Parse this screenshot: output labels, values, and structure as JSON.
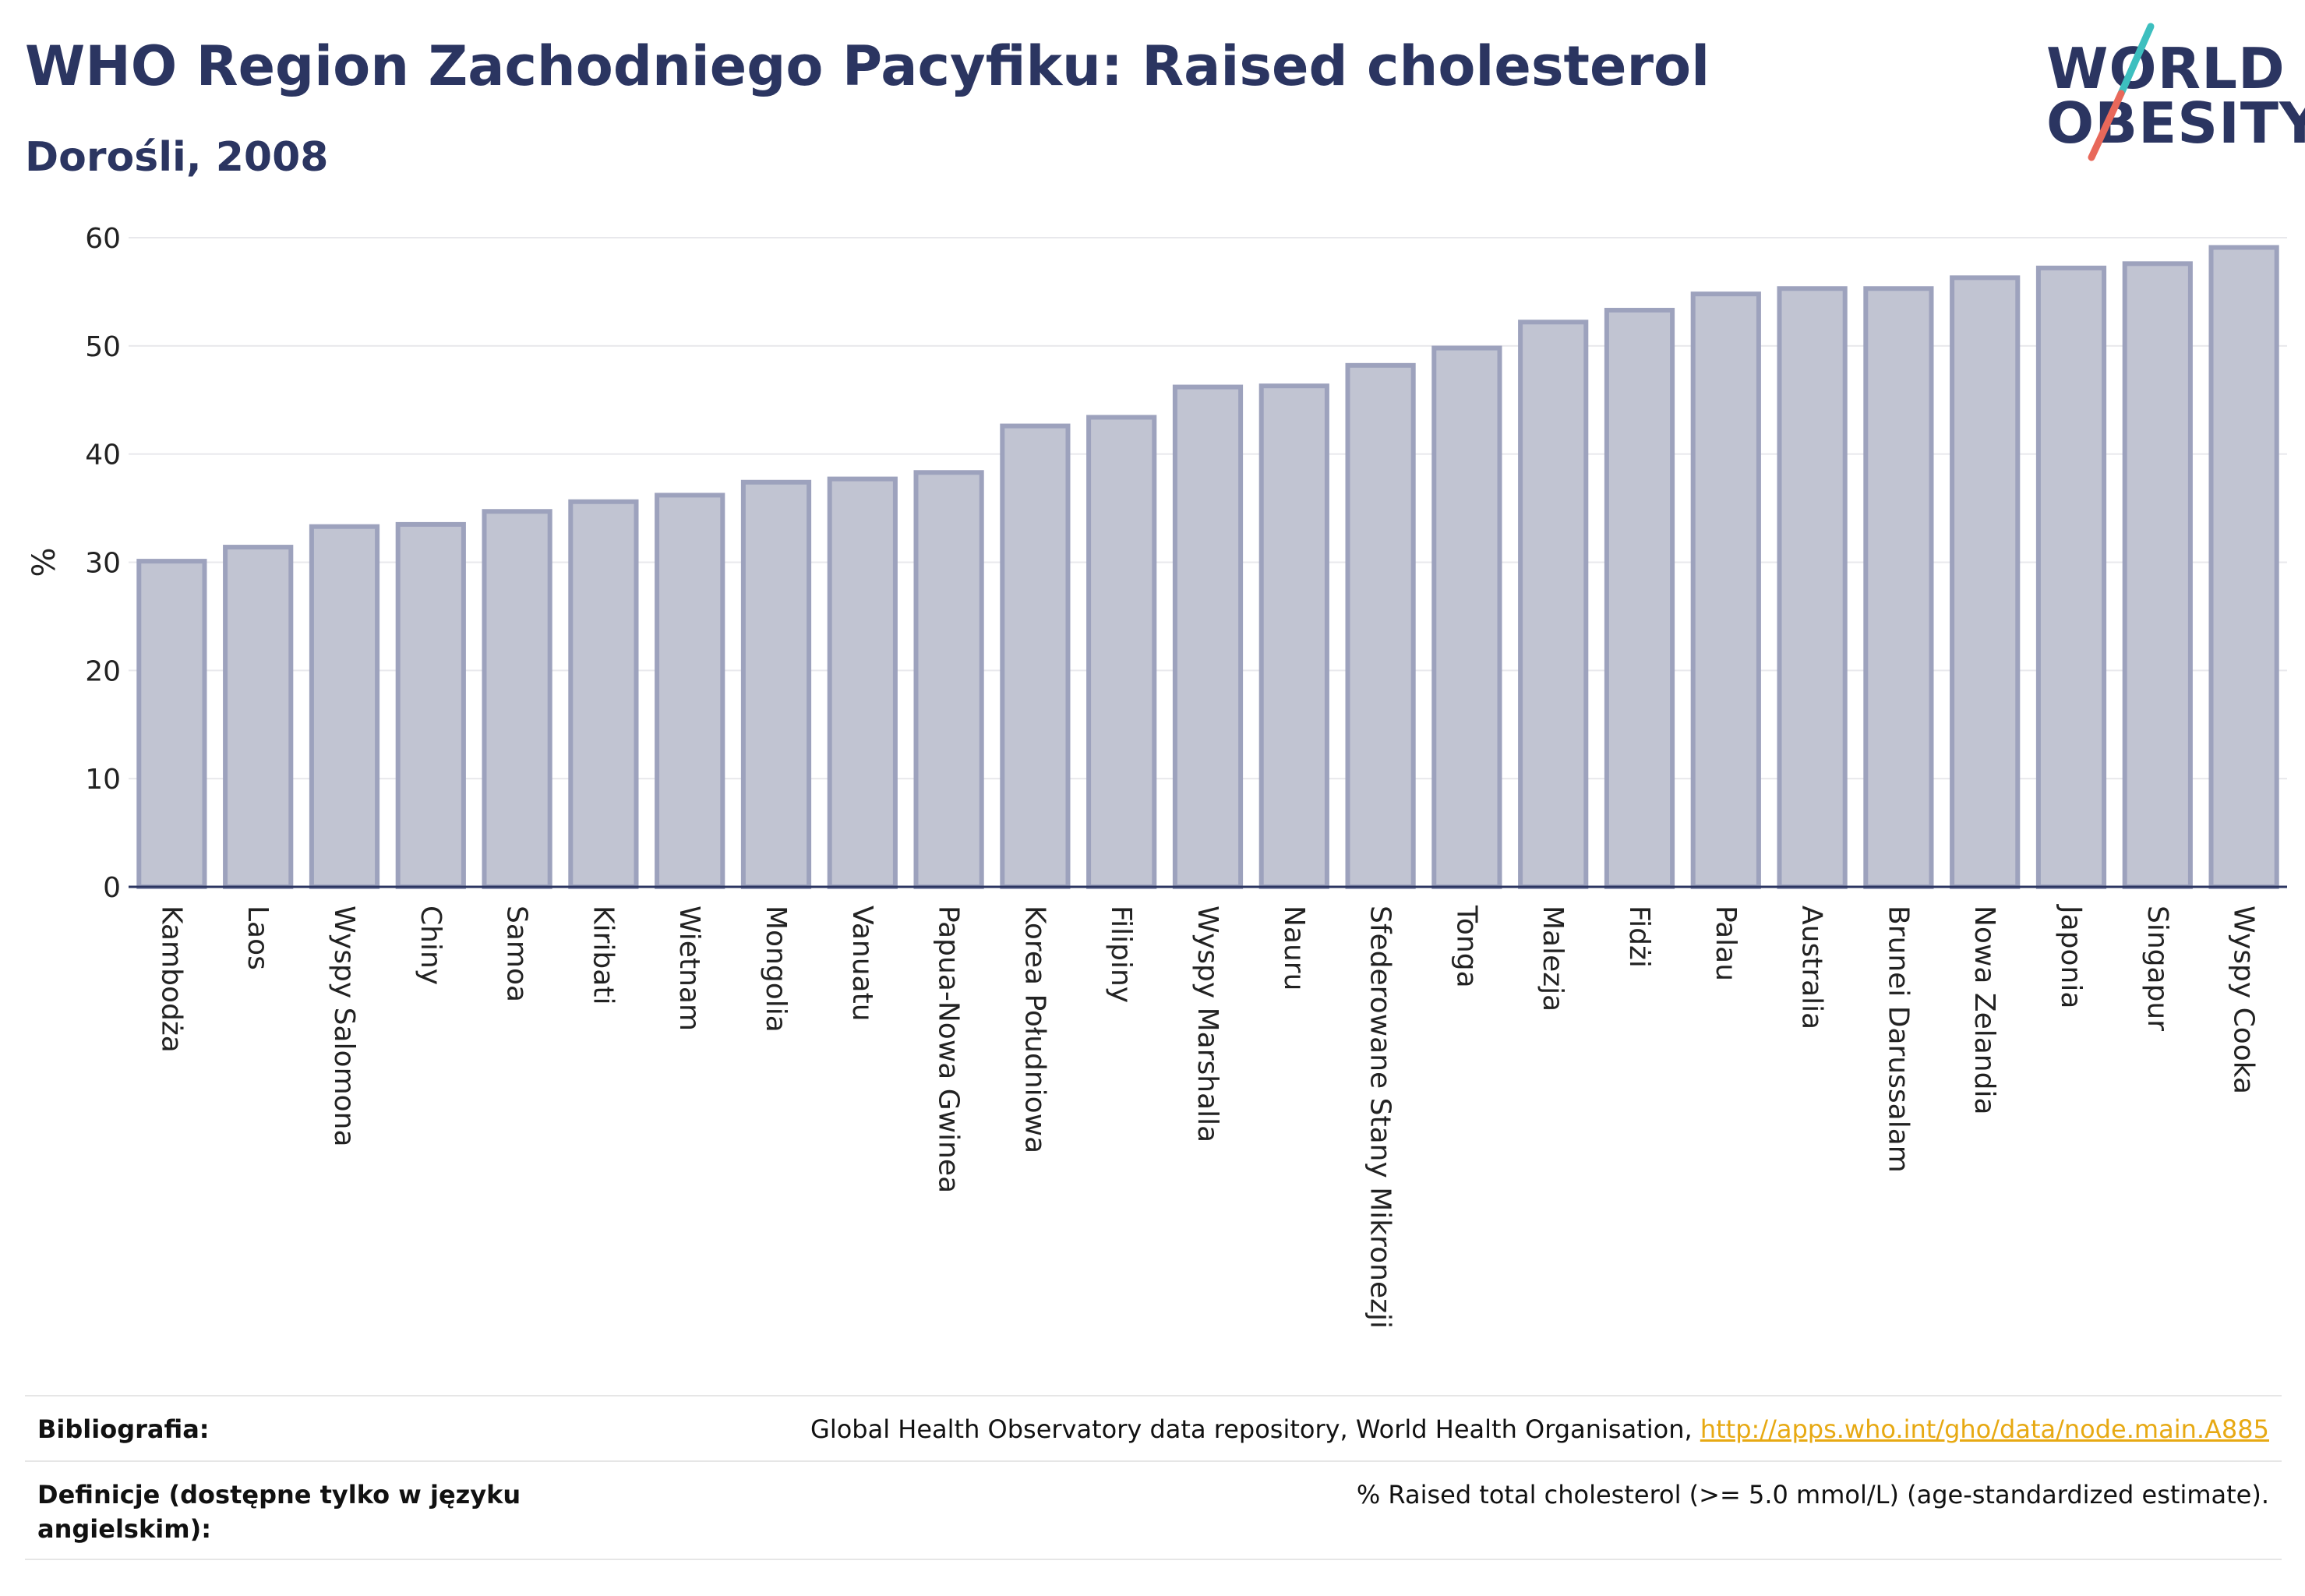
{
  "header": {
    "title": "WHO Region Zachodniego Pacyfiku: Raised cholesterol",
    "subtitle": "Dorośli, 2008"
  },
  "logo": {
    "line1": "WORLD",
    "line2": "OBESITY",
    "colors": {
      "text": "#2b3561",
      "slash_top": "#3dbfbf",
      "slash_bottom": "#e8685a"
    }
  },
  "colors": {
    "bar_fill": "#c1c4d2",
    "bar_stroke": "#9da2bd",
    "grid": "#e8e8ec",
    "axis": "#2b3561",
    "link": "#e7a913"
  },
  "chart_data": {
    "type": "bar",
    "ylabel": "%",
    "ylim": [
      0,
      60
    ],
    "yticks": [
      0,
      10,
      20,
      30,
      40,
      50,
      60
    ],
    "grid": true,
    "categories": [
      "Kambodża",
      "Laos",
      "Wyspy Salomona",
      "Chiny",
      "Samoa",
      "Kiribati",
      "Wietnam",
      "Mongolia",
      "Vanuatu",
      "Papua-Nowa Gwinea",
      "Korea Południowa",
      "Filipiny",
      "Wyspy Marshalla",
      "Nauru",
      "Sfederowane Stany Mikronezji",
      "Tonga",
      "Malezja",
      "Fidżi",
      "Palau",
      "Australia",
      "Brunei Darussalam",
      "Nowa Zelandia",
      "Japonia",
      "Singapur",
      "Wyspy Cooka"
    ],
    "values": [
      30.1,
      31.4,
      33.3,
      33.5,
      34.7,
      35.6,
      36.2,
      37.4,
      37.7,
      38.3,
      42.6,
      43.4,
      46.2,
      46.3,
      48.2,
      49.8,
      52.2,
      53.3,
      54.8,
      55.3,
      55.3,
      56.3,
      57.2,
      57.6,
      59.1
    ]
  },
  "footer": {
    "bibliography_label": "Bibliografia:",
    "bibliography_text": "Global Health Observatory data repository, World Health Organisation, ",
    "bibliography_link": "http://apps.who.int/gho/data/node.main.A885",
    "definitions_label": "Definicje (dostępne tylko w języku angielskim):",
    "definitions_text": "% Raised total cholesterol (>= 5.0 mmol/L) (age-standardized estimate)."
  }
}
